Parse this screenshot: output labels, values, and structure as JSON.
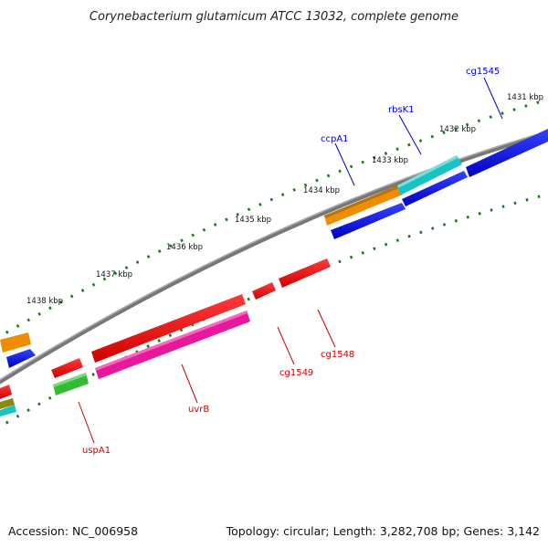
{
  "title": "Corynebacterium glutamicum ATCC 13032, complete genome",
  "footer": {
    "accession": "Accession: NC_006958",
    "summary": "Topology: circular; Length: 3,282,708 bp; Genes: 3,142"
  },
  "ticks": [
    {
      "label": "1431 kbp"
    },
    {
      "label": "1432 kbp"
    },
    {
      "label": "1433 kbp"
    },
    {
      "label": "1434 kbp"
    },
    {
      "label": "1435 kbp"
    },
    {
      "label": "1436 kbp"
    },
    {
      "label": "1437 kbp"
    },
    {
      "label": "1438 kbp"
    }
  ],
  "genes": [
    {
      "name": "cg1545",
      "strand": "forward",
      "color": "#0000cc"
    },
    {
      "name": "rbsK1",
      "strand": "forward",
      "color": "#0000cc"
    },
    {
      "name": "ccpA1",
      "strand": "forward",
      "color": "#0000cc"
    },
    {
      "name": "cg1548",
      "strand": "reverse",
      "color": "#cc0000"
    },
    {
      "name": "cg1549",
      "strand": "reverse",
      "color": "#cc0000"
    },
    {
      "name": "uvrB",
      "strand": "reverse",
      "color": "#cc0000"
    },
    {
      "name": "uspA1",
      "strand": "reverse",
      "color": "#cc0000"
    }
  ],
  "colors": {
    "backbone": "#808080",
    "tick": "#1a7a1a",
    "forward_cds": "#0000ee",
    "reverse_cds": "#ee0000",
    "orange": "#f08c00",
    "cyan": "#19c3c3",
    "magenta": "#e8189a",
    "green": "#33bb33"
  }
}
